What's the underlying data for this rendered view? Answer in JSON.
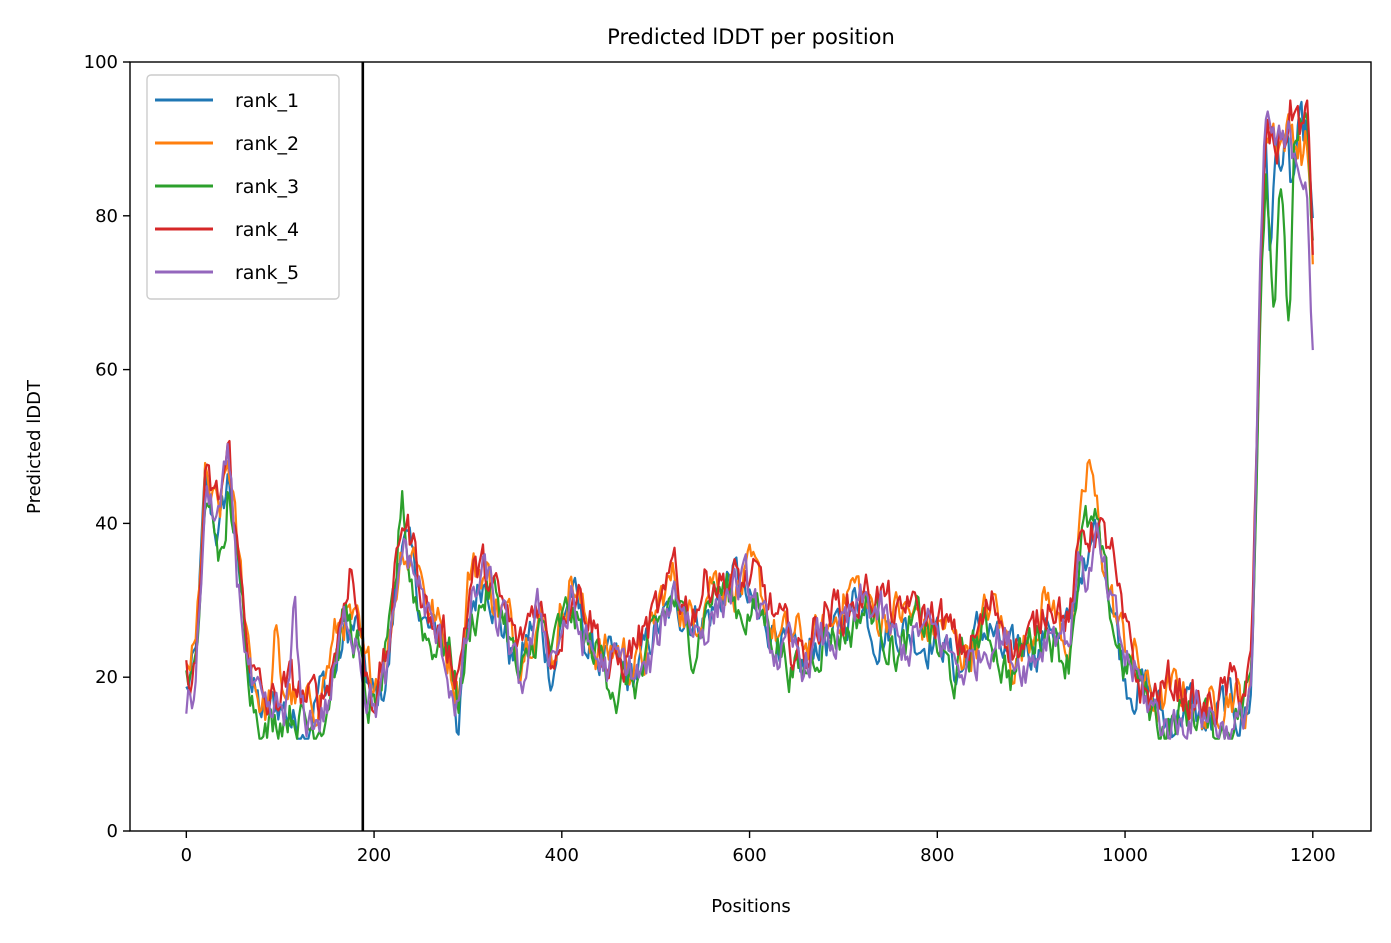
{
  "chart_data": {
    "type": "line",
    "title": "Predicted lDDT per position",
    "xlabel": "Positions",
    "ylabel": "Predicted lDDT",
    "xlim": [
      -60,
      1262
    ],
    "ylim": [
      0,
      100
    ],
    "xticks": [
      0,
      200,
      400,
      600,
      800,
      1000,
      1200
    ],
    "yticks": [
      0,
      20,
      40,
      60,
      80,
      100
    ],
    "grid": false,
    "legend_position": "top-left",
    "vertical_line_x": 188,
    "series": [
      {
        "name": "rank_1",
        "color": "#1f77b4",
        "offset": 0,
        "spikes": [
          [
            1155,
            -14
          ],
          [
            1178,
            -6
          ],
          [
            960,
            -4
          ],
          [
            290,
            -3
          ],
          [
            930,
            -2
          ]
        ]
      },
      {
        "name": "rank_2",
        "color": "#ff7f0e",
        "offset": 1.8,
        "spikes": [
          [
            962,
            6
          ],
          [
            95,
            7
          ],
          [
            300,
            4
          ],
          [
            245,
            3
          ],
          [
            1130,
            -3
          ]
        ]
      },
      {
        "name": "rank_3",
        "color": "#2ca02c",
        "offset": -0.6,
        "spikes": [
          [
            230,
            6
          ],
          [
            1174,
            -28
          ],
          [
            1158,
            -18
          ],
          [
            460,
            -3
          ],
          [
            40,
            -8
          ]
        ]
      },
      {
        "name": "rank_4",
        "color": "#d62728",
        "offset": 2.2,
        "spikes": [
          [
            770,
            4
          ],
          [
            520,
            4
          ],
          [
            175,
            5
          ],
          [
            985,
            4
          ],
          [
            1195,
            2
          ]
        ]
      },
      {
        "name": "rank_5",
        "color": "#9467bd",
        "offset": -0.4,
        "spikes": [
          [
            115,
            12
          ],
          [
            1200,
            -14
          ],
          [
            960,
            -6
          ],
          [
            330,
            -2
          ]
        ]
      }
    ],
    "baseline_profile": [
      [
        0,
        18
      ],
      [
        10,
        20
      ],
      [
        20,
        44
      ],
      [
        35,
        40
      ],
      [
        45,
        46
      ],
      [
        55,
        32
      ],
      [
        70,
        20
      ],
      [
        85,
        15
      ],
      [
        100,
        15
      ],
      [
        130,
        15
      ],
      [
        150,
        18
      ],
      [
        170,
        27
      ],
      [
        183,
        25
      ],
      [
        190,
        19
      ],
      [
        200,
        17
      ],
      [
        215,
        22
      ],
      [
        230,
        38
      ],
      [
        245,
        32
      ],
      [
        260,
        26
      ],
      [
        275,
        24
      ],
      [
        290,
        18
      ],
      [
        305,
        30
      ],
      [
        320,
        32
      ],
      [
        340,
        27
      ],
      [
        355,
        20
      ],
      [
        375,
        28
      ],
      [
        390,
        22
      ],
      [
        410,
        30
      ],
      [
        430,
        25
      ],
      [
        450,
        20
      ],
      [
        470,
        21
      ],
      [
        490,
        22
      ],
      [
        520,
        31
      ],
      [
        540,
        26
      ],
      [
        560,
        30
      ],
      [
        580,
        32
      ],
      [
        600,
        30
      ],
      [
        620,
        26
      ],
      [
        640,
        24
      ],
      [
        660,
        21
      ],
      [
        680,
        25
      ],
      [
        700,
        28
      ],
      [
        720,
        29
      ],
      [
        740,
        27
      ],
      [
        760,
        25
      ],
      [
        780,
        27
      ],
      [
        800,
        24
      ],
      [
        820,
        22
      ],
      [
        840,
        24
      ],
      [
        860,
        26
      ],
      [
        880,
        22
      ],
      [
        900,
        24
      ],
      [
        920,
        28
      ],
      [
        940,
        24
      ],
      [
        955,
        38
      ],
      [
        970,
        39
      ],
      [
        985,
        30
      ],
      [
        1000,
        22
      ],
      [
        1020,
        17
      ],
      [
        1060,
        15
      ],
      [
        1100,
        15
      ],
      [
        1125,
        15
      ],
      [
        1135,
        20
      ],
      [
        1145,
        75
      ],
      [
        1150,
        90
      ],
      [
        1165,
        88
      ],
      [
        1180,
        91
      ],
      [
        1195,
        88
      ],
      [
        1201,
        72
      ]
    ]
  }
}
